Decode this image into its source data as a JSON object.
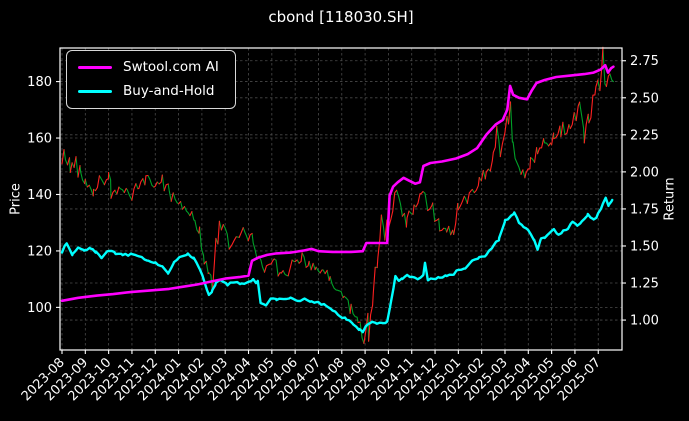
{
  "title": "cbond [118030.SH]",
  "colors": {
    "background": "#000000",
    "text": "#ffffff",
    "grid": "#4a4a4a",
    "spine": "#ffffff",
    "ai_line": "#ff00ff",
    "buy_hold_line": "#00ffff",
    "price_up": "#ff2020",
    "price_down": "#00a028"
  },
  "chart_data": {
    "type": "line",
    "title": "cbond [118030.SH]",
    "grid": true,
    "legend_position": "upper left",
    "x_tick_labels": [
      "2023-08",
      "2023-09",
      "2023-10",
      "2023-11",
      "2023-12",
      "2024-01",
      "2024-02",
      "2024-03",
      "2024-04",
      "2024-05",
      "2024-06",
      "2024-07",
      "2024-08",
      "2024-09",
      "2024-10",
      "2024-11",
      "2024-12",
      "2025-01",
      "2025-02",
      "2025-03",
      "2025-04",
      "2025-05",
      "2025-06",
      "2025-07"
    ],
    "left_axis": {
      "label": "Price",
      "ticks": [
        100,
        120,
        140,
        160,
        180
      ],
      "range": [
        84.9,
        191.9
      ]
    },
    "right_axis": {
      "label": "Return",
      "ticks": [
        1.0,
        1.25,
        1.5,
        1.75,
        2.0,
        2.25,
        2.5,
        2.75
      ],
      "range": [
        0.798,
        2.836
      ]
    },
    "legend": [
      {
        "label": "Swtool.com AI",
        "color": "#ff00ff"
      },
      {
        "label": "Buy-and-Hold",
        "color": "#00ffff"
      }
    ],
    "series": [
      {
        "name": "price_daily",
        "axis": "left",
        "style": "direction-colored",
        "up_color": "#ff2020",
        "down_color": "#00a028",
        "width": 1.1,
        "points": [
          [
            0,
            150
          ],
          [
            0.15,
            155
          ],
          [
            0.35,
            149
          ],
          [
            0.6,
            152
          ],
          [
            0.8,
            147
          ],
          [
            1.0,
            145
          ],
          [
            1.35,
            141.5
          ],
          [
            1.65,
            146
          ],
          [
            2.0,
            144
          ],
          [
            2.1,
            141
          ],
          [
            2.5,
            141.5
          ],
          [
            2.8,
            142
          ],
          [
            3.0,
            139
          ],
          [
            3.3,
            143
          ],
          [
            3.6,
            145.5
          ],
          [
            4.0,
            143.5
          ],
          [
            4.3,
            145
          ],
          [
            4.6,
            141
          ],
          [
            5.0,
            138
          ],
          [
            5.4,
            134
          ],
          [
            5.7,
            130.5
          ],
          [
            5.9,
            127
          ],
          [
            6.1,
            119
          ],
          [
            6.3,
            111
          ],
          [
            6.45,
            108.5
          ],
          [
            6.6,
            121
          ],
          [
            6.75,
            129
          ],
          [
            7.0,
            126
          ],
          [
            7.3,
            121
          ],
          [
            7.6,
            125
          ],
          [
            7.9,
            127.5
          ],
          [
            8.2,
            123
          ],
          [
            8.45,
            120
          ],
          [
            8.6,
            113
          ],
          [
            8.8,
            115
          ],
          [
            9.1,
            117
          ],
          [
            9.4,
            113.5
          ],
          [
            9.7,
            112.5
          ],
          [
            10.0,
            116
          ],
          [
            10.3,
            118.5
          ],
          [
            10.6,
            115
          ],
          [
            10.9,
            113
          ],
          [
            11.2,
            112.5
          ],
          [
            11.5,
            110
          ],
          [
            11.8,
            106
          ],
          [
            12.1,
            104
          ],
          [
            12.4,
            99
          ],
          [
            12.7,
            95
          ],
          [
            12.95,
            90.5
          ],
          [
            13.15,
            96
          ],
          [
            13.35,
            104
          ],
          [
            13.55,
            120
          ],
          [
            13.7,
            131
          ],
          [
            13.85,
            127
          ],
          [
            14.1,
            134
          ],
          [
            14.35,
            139
          ],
          [
            14.6,
            133
          ],
          [
            14.8,
            130
          ],
          [
            15.1,
            136
          ],
          [
            15.4,
            140
          ],
          [
            15.6,
            137
          ],
          [
            15.9,
            134.5
          ],
          [
            16.2,
            128
          ],
          [
            16.5,
            128
          ],
          [
            16.8,
            126
          ],
          [
            17.0,
            135
          ],
          [
            17.3,
            138
          ],
          [
            17.6,
            142
          ],
          [
            17.9,
            145
          ],
          [
            18.2,
            148
          ],
          [
            18.5,
            152
          ],
          [
            18.65,
            168
          ],
          [
            18.8,
            153
          ],
          [
            19.0,
            158
          ],
          [
            19.15,
            168
          ],
          [
            19.35,
            157
          ],
          [
            19.6,
            149
          ],
          [
            19.9,
            147
          ],
          [
            20.1,
            150
          ],
          [
            20.4,
            155
          ],
          [
            20.7,
            158
          ],
          [
            21.0,
            157
          ],
          [
            21.1,
            159
          ],
          [
            21.4,
            162
          ],
          [
            21.8,
            164
          ],
          [
            22.2,
            172
          ],
          [
            22.4,
            161
          ],
          [
            22.6,
            166
          ],
          [
            22.9,
            175
          ],
          [
            23.2,
            183
          ],
          [
            23.35,
            174
          ],
          [
            23.5,
            181
          ],
          [
            23.65,
            180
          ]
        ]
      },
      {
        "name": "Buy-and-Hold",
        "axis": "right",
        "style": "line",
        "color": "#00ffff",
        "width": 2.4,
        "points": [
          [
            0,
            1.46
          ],
          [
            0.2,
            1.52
          ],
          [
            0.45,
            1.44
          ],
          [
            0.7,
            1.49
          ],
          [
            0.95,
            1.47
          ],
          [
            1.2,
            1.49
          ],
          [
            1.45,
            1.46
          ],
          [
            1.7,
            1.42
          ],
          [
            2.0,
            1.47
          ],
          [
            2.3,
            1.45
          ],
          [
            2.6,
            1.44
          ],
          [
            3.0,
            1.445
          ],
          [
            3.3,
            1.43
          ],
          [
            3.7,
            1.4
          ],
          [
            4.0,
            1.385
          ],
          [
            4.3,
            1.36
          ],
          [
            4.55,
            1.32
          ],
          [
            4.8,
            1.39
          ],
          [
            5.1,
            1.43
          ],
          [
            5.4,
            1.445
          ],
          [
            5.65,
            1.42
          ],
          [
            5.9,
            1.35
          ],
          [
            6.1,
            1.27
          ],
          [
            6.3,
            1.17
          ],
          [
            6.45,
            1.2
          ],
          [
            6.6,
            1.25
          ],
          [
            6.8,
            1.265
          ],
          [
            7.1,
            1.24
          ],
          [
            7.4,
            1.26
          ],
          [
            7.7,
            1.245
          ],
          [
            8.0,
            1.26
          ],
          [
            8.2,
            1.27
          ],
          [
            8.4,
            1.25
          ],
          [
            8.52,
            1.11
          ],
          [
            8.75,
            1.095
          ],
          [
            8.95,
            1.15
          ],
          [
            9.2,
            1.14
          ],
          [
            9.5,
            1.145
          ],
          [
            9.8,
            1.15
          ],
          [
            10.1,
            1.13
          ],
          [
            10.4,
            1.14
          ],
          [
            10.7,
            1.125
          ],
          [
            11.0,
            1.115
          ],
          [
            11.3,
            1.1
          ],
          [
            11.6,
            1.07
          ],
          [
            11.9,
            1.03
          ],
          [
            12.2,
            1.01
          ],
          [
            12.5,
            0.97
          ],
          [
            12.75,
            0.935
          ],
          [
            12.9,
            0.92
          ],
          [
            13.1,
            0.97
          ],
          [
            13.3,
            0.99
          ],
          [
            13.5,
            0.975
          ],
          [
            13.75,
            0.98
          ],
          [
            13.95,
            0.985
          ],
          [
            14.1,
            1.12
          ],
          [
            14.3,
            1.29
          ],
          [
            14.45,
            1.26
          ],
          [
            14.6,
            1.28
          ],
          [
            14.8,
            1.3
          ],
          [
            15.0,
            1.29
          ],
          [
            15.25,
            1.275
          ],
          [
            15.5,
            1.3
          ],
          [
            15.57,
            1.38
          ],
          [
            15.7,
            1.27
          ],
          [
            15.9,
            1.28
          ],
          [
            16.2,
            1.285
          ],
          [
            16.5,
            1.3
          ],
          [
            16.8,
            1.31
          ],
          [
            17.0,
            1.34
          ],
          [
            17.3,
            1.35
          ],
          [
            17.6,
            1.4
          ],
          [
            17.9,
            1.42
          ],
          [
            18.2,
            1.44
          ],
          [
            18.5,
            1.5
          ],
          [
            18.75,
            1.55
          ],
          [
            19.0,
            1.67
          ],
          [
            19.25,
            1.7
          ],
          [
            19.4,
            1.72
          ],
          [
            19.6,
            1.66
          ],
          [
            19.8,
            1.63
          ],
          [
            20.0,
            1.6
          ],
          [
            20.25,
            1.54
          ],
          [
            20.4,
            1.47
          ],
          [
            20.55,
            1.55
          ],
          [
            20.7,
            1.56
          ],
          [
            20.9,
            1.59
          ],
          [
            21.1,
            1.62
          ],
          [
            21.3,
            1.57
          ],
          [
            21.5,
            1.6
          ],
          [
            21.7,
            1.62
          ],
          [
            21.9,
            1.66
          ],
          [
            22.1,
            1.64
          ],
          [
            22.3,
            1.66
          ],
          [
            22.55,
            1.71
          ],
          [
            22.8,
            1.68
          ],
          [
            23.0,
            1.72
          ],
          [
            23.2,
            1.78
          ],
          [
            23.32,
            1.84
          ],
          [
            23.45,
            1.77
          ],
          [
            23.6,
            1.81
          ]
        ]
      },
      {
        "name": "Swtool.com AI",
        "axis": "right",
        "style": "line",
        "color": "#ff00ff",
        "width": 2.6,
        "points": [
          [
            0,
            1.13
          ],
          [
            0.7,
            1.15
          ],
          [
            1.5,
            1.165
          ],
          [
            2.2,
            1.175
          ],
          [
            3.0,
            1.19
          ],
          [
            3.8,
            1.2
          ],
          [
            4.6,
            1.21
          ],
          [
            5.2,
            1.225
          ],
          [
            5.8,
            1.24
          ],
          [
            6.4,
            1.26
          ],
          [
            7.0,
            1.28
          ],
          [
            7.6,
            1.29
          ],
          [
            8.0,
            1.3
          ],
          [
            8.15,
            1.4
          ],
          [
            8.4,
            1.42
          ],
          [
            8.8,
            1.44
          ],
          [
            9.2,
            1.45
          ],
          [
            9.8,
            1.455
          ],
          [
            10.4,
            1.47
          ],
          [
            10.7,
            1.48
          ],
          [
            11.0,
            1.465
          ],
          [
            11.6,
            1.46
          ],
          [
            12.4,
            1.46
          ],
          [
            12.9,
            1.465
          ],
          [
            13.05,
            1.52
          ],
          [
            13.95,
            1.52
          ],
          [
            14.05,
            1.84
          ],
          [
            14.2,
            1.9
          ],
          [
            14.4,
            1.93
          ],
          [
            14.65,
            1.96
          ],
          [
            14.9,
            1.94
          ],
          [
            15.15,
            1.92
          ],
          [
            15.35,
            1.93
          ],
          [
            15.5,
            2.04
          ],
          [
            15.8,
            2.06
          ],
          [
            16.3,
            2.07
          ],
          [
            16.9,
            2.09
          ],
          [
            17.4,
            2.12
          ],
          [
            17.8,
            2.16
          ],
          [
            18.2,
            2.25
          ],
          [
            18.6,
            2.32
          ],
          [
            18.9,
            2.35
          ],
          [
            19.1,
            2.42
          ],
          [
            19.22,
            2.58
          ],
          [
            19.35,
            2.52
          ],
          [
            19.6,
            2.5
          ],
          [
            19.95,
            2.49
          ],
          [
            20.15,
            2.55
          ],
          [
            20.35,
            2.6
          ],
          [
            20.7,
            2.62
          ],
          [
            21.2,
            2.64
          ],
          [
            21.8,
            2.65
          ],
          [
            22.4,
            2.66
          ],
          [
            22.8,
            2.67
          ],
          [
            23.1,
            2.69
          ],
          [
            23.3,
            2.72
          ],
          [
            23.42,
            2.67
          ],
          [
            23.55,
            2.7
          ],
          [
            23.65,
            2.71
          ]
        ]
      }
    ]
  }
}
